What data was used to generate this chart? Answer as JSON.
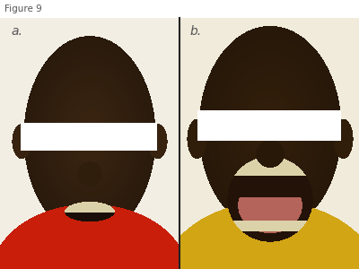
{
  "figure_label": "Figure 9",
  "figure_label_fontsize": 7.5,
  "figure_label_color": "#555555",
  "bg_color": "#ffffff",
  "panel_a_label": "a.",
  "panel_b_label": "b.",
  "panel_label_fontsize": 10,
  "panel_label_color": "#555555",
  "panel_a_bg": [
    242,
    238,
    228
  ],
  "panel_b_bg": [
    240,
    235,
    218
  ],
  "skin_dark": [
    55,
    35,
    15
  ],
  "skin_mid": [
    75,
    50,
    25
  ],
  "skin_light": [
    95,
    65,
    35
  ],
  "divider_color": "#222222",
  "privacy_color": [
    255,
    255,
    255
  ],
  "teeth_color": [
    220,
    210,
    170
  ],
  "tongue_color": [
    180,
    100,
    90
  ],
  "shirt_a_color": [
    200,
    30,
    10
  ],
  "shirt_b_color": [
    210,
    165,
    20
  ],
  "mouth_dark": [
    30,
    15,
    5
  ]
}
